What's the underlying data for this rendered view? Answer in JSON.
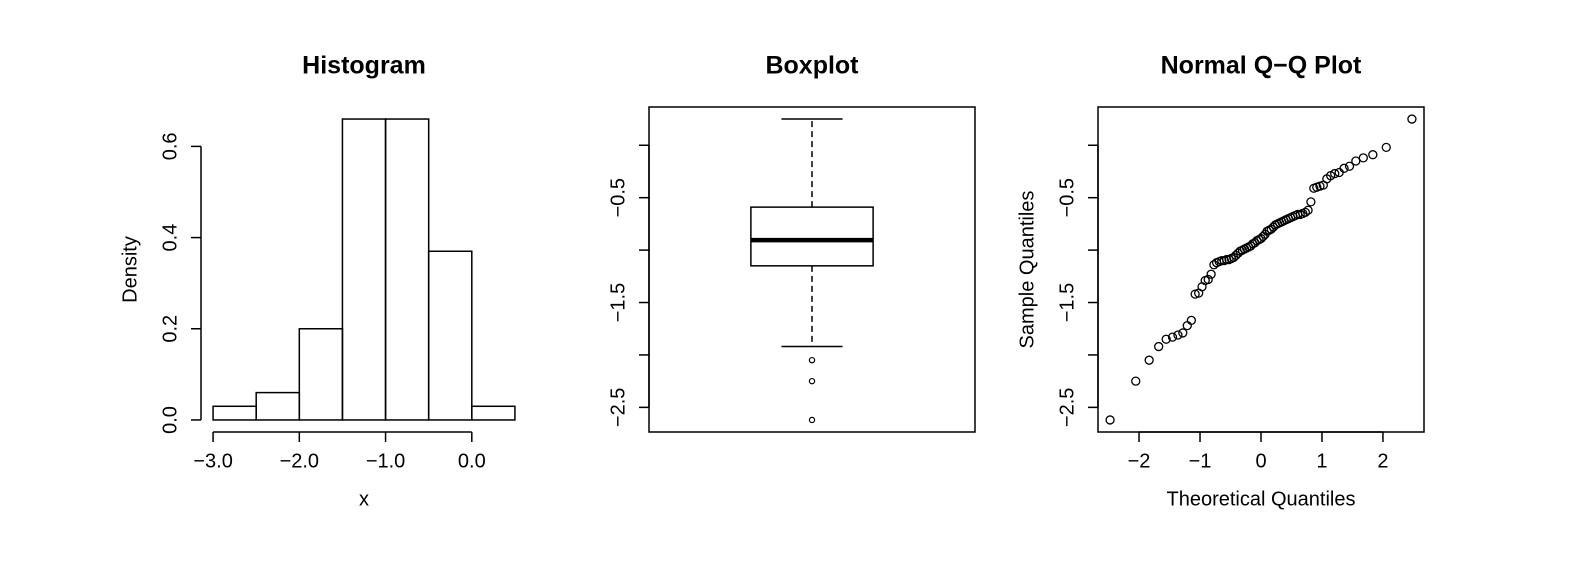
{
  "chart_data": [
    {
      "type": "histogram",
      "title": "Histogram",
      "xlabel": "x",
      "ylabel": "Density",
      "bins": [
        -3.0,
        -2.5,
        -2.0,
        -1.5,
        -1.0,
        -0.5,
        0.0,
        0.5
      ],
      "values": [
        0.03,
        0.06,
        0.2,
        0.66,
        0.66,
        0.37,
        0.03
      ],
      "xlim": [
        -3.14,
        0.64
      ],
      "ylim": [
        -0.0264,
        0.6864
      ],
      "xticks": [
        {
          "value": -3.0,
          "label": "−3.0"
        },
        {
          "value": -2.0,
          "label": "−2.0"
        },
        {
          "value": -1.0,
          "label": "−1.0"
        },
        {
          "value": 0.0,
          "label": "0.0"
        }
      ],
      "yticks": [
        {
          "value": 0.0,
          "label": "0.0"
        },
        0.2,
        0.4,
        0.6
      ]
    },
    {
      "type": "box",
      "title": "Boxplot",
      "whisker_low": -1.92,
      "q1": -1.15,
      "median": -0.905,
      "q3": -0.59,
      "whisker_high": 0.25,
      "outliers": [
        -2.05,
        -2.25,
        -2.62
      ],
      "ylim": [
        -2.735,
        0.365
      ],
      "yticks": [
        {
          "value": 0.0,
          "label": null
        },
        {
          "value": -0.5,
          "label": "−0.5"
        },
        {
          "value": -1.0,
          "label": null
        },
        {
          "value": -1.5,
          "label": "−1.5"
        },
        {
          "value": -2.0,
          "label": null
        },
        {
          "value": -2.5,
          "label": "−2.5"
        }
      ]
    },
    {
      "type": "scatter",
      "title": "Normal Q−Q Plot",
      "xlabel": "Theoretical Quantiles",
      "ylabel": "Sample Quantiles",
      "x": [
        -2.475,
        -2.054,
        -1.834,
        -1.678,
        -1.555,
        -1.451,
        -1.362,
        -1.282,
        -1.209,
        -1.142,
        -1.08,
        -1.022,
        -0.967,
        -0.915,
        -0.866,
        -0.818,
        -0.772,
        -0.728,
        -0.685,
        -0.643,
        -0.602,
        -0.563,
        -0.524,
        -0.486,
        -0.449,
        -0.412,
        -0.376,
        -0.341,
        -0.305,
        -0.271,
        -0.236,
        -0.202,
        -0.168,
        -0.134,
        -0.1,
        -0.067,
        -0.033,
        0,
        0.033,
        0.067,
        0.1,
        0.134,
        0.168,
        0.202,
        0.236,
        0.271,
        0.305,
        0.341,
        0.376,
        0.412,
        0.449,
        0.486,
        0.524,
        0.563,
        0.602,
        0.643,
        0.685,
        0.728,
        0.772,
        0.818,
        0.866,
        0.915,
        0.967,
        1.022,
        1.08,
        1.142,
        1.209,
        1.282,
        1.362,
        1.451,
        1.555,
        1.678,
        1.834,
        2.054,
        2.475
      ],
      "values": [
        -2.62,
        -2.25,
        -2.05,
        -1.92,
        -1.85,
        -1.83,
        -1.81,
        -1.79,
        -1.72,
        -1.67,
        -1.42,
        -1.41,
        -1.35,
        -1.29,
        -1.28,
        -1.23,
        -1.14,
        -1.12,
        -1.11,
        -1.1,
        -1.1,
        -1.09,
        -1.09,
        -1.08,
        -1.07,
        -1.05,
        -1.03,
        -1.01,
        -1.0,
        -0.99,
        -0.98,
        -0.97,
        -0.96,
        -0.94,
        -0.93,
        -0.91,
        -0.9,
        -0.89,
        -0.87,
        -0.85,
        -0.82,
        -0.81,
        -0.8,
        -0.78,
        -0.76,
        -0.75,
        -0.74,
        -0.73,
        -0.72,
        -0.71,
        -0.7,
        -0.69,
        -0.68,
        -0.67,
        -0.66,
        -0.66,
        -0.65,
        -0.64,
        -0.62,
        -0.54,
        -0.41,
        -0.4,
        -0.39,
        -0.38,
        -0.32,
        -0.29,
        -0.27,
        -0.26,
        -0.22,
        -0.2,
        -0.15,
        -0.12,
        -0.09,
        -0.02,
        0.25
      ],
      "xlim": [
        -2.673,
        2.673
      ],
      "ylim": [
        -2.735,
        0.365
      ],
      "xticks": [
        {
          "value": -2,
          "label": "−2"
        },
        {
          "value": -1,
          "label": "−1"
        },
        0,
        1,
        2
      ],
      "yticks": [
        {
          "value": 0.0,
          "label": null
        },
        {
          "value": -0.5,
          "label": "−0.5"
        },
        {
          "value": -1.0,
          "label": null
        },
        {
          "value": -1.5,
          "label": "−1.5"
        },
        {
          "value": -2.0,
          "label": null
        },
        {
          "value": -2.5,
          "label": "−2.5"
        }
      ]
    }
  ]
}
